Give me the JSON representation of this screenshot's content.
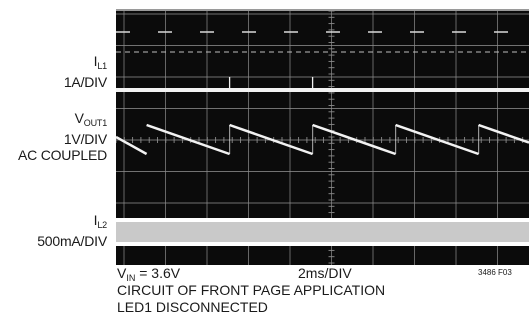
{
  "chart_data": {
    "type": "oscilloscope",
    "channels": [
      {
        "name_main": "I",
        "name_sub": "L1",
        "scale": "1A/DIV"
      },
      {
        "name_main": "V",
        "name_sub": "OUT1",
        "scale": "1V/DIV",
        "coupling": "AC COUPLED"
      },
      {
        "name_main": "I",
        "name_sub": "L2",
        "scale": "500mA/DIV"
      }
    ],
    "grid": {
      "divisions_x": 10,
      "divisions_y": 8,
      "time_per_div": "2ms/DIV"
    },
    "vout_sawtooth_rise_times_div": [
      0.4,
      2.4,
      4.4,
      6.4,
      8.4
    ],
    "il1_spike_times_div": [
      2.4,
      4.4
    ],
    "colors": {
      "screen": "#0b0b0b",
      "trace": "#f2f2f2",
      "grid": "#8c8c8c",
      "il2_band": "#c9c9c9"
    }
  },
  "footer": {
    "vin_main": "V",
    "vin_sub": "IN",
    "vin_value": " = 3.6V",
    "timebase": "2ms/DIV",
    "line2": "CIRCUIT OF FRONT PAGE APPLICATION",
    "line3": "LED1 DISCONNECTED",
    "figure_code": "3486 F03"
  }
}
